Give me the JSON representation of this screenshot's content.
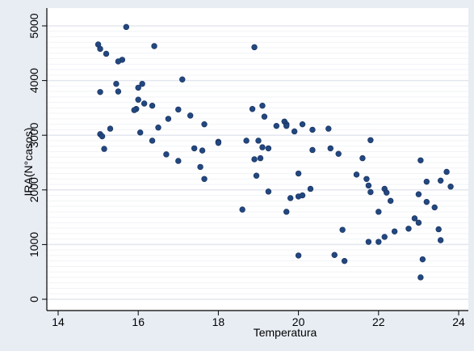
{
  "chart_data": {
    "type": "scatter",
    "title": "",
    "xlabel": "Temperatura",
    "ylabel": "IRA(N°casos)",
    "xlim": [
      14,
      24
    ],
    "ylim": [
      0,
      5000
    ],
    "x_ticks": [
      14,
      16,
      18,
      20,
      22,
      24
    ],
    "y_ticks": [
      0,
      1000,
      2000,
      3000,
      4000,
      5000
    ],
    "grid": true,
    "legend": "none",
    "colors": {
      "point": "#23477f",
      "background": "#e8edf4",
      "plot_bg": "#ffffff",
      "grid": "#eef1f5"
    },
    "points": [
      {
        "x": 15.0,
        "y": 4660
      },
      {
        "x": 15.05,
        "y": 4580
      },
      {
        "x": 15.2,
        "y": 4490
      },
      {
        "x": 15.7,
        "y": 4980
      },
      {
        "x": 15.6,
        "y": 4380
      },
      {
        "x": 15.5,
        "y": 4350
      },
      {
        "x": 16.4,
        "y": 4630
      },
      {
        "x": 15.05,
        "y": 3790
      },
      {
        "x": 15.45,
        "y": 3940
      },
      {
        "x": 15.5,
        "y": 3800
      },
      {
        "x": 16.0,
        "y": 3870
      },
      {
        "x": 16.1,
        "y": 3940
      },
      {
        "x": 16.0,
        "y": 3650
      },
      {
        "x": 15.95,
        "y": 3480
      },
      {
        "x": 15.9,
        "y": 3460
      },
      {
        "x": 16.15,
        "y": 3580
      },
      {
        "x": 16.35,
        "y": 3540
      },
      {
        "x": 17.1,
        "y": 4020
      },
      {
        "x": 16.5,
        "y": 3140
      },
      {
        "x": 16.75,
        "y": 3300
      },
      {
        "x": 17.0,
        "y": 3470
      },
      {
        "x": 17.3,
        "y": 3360
      },
      {
        "x": 17.65,
        "y": 3200
      },
      {
        "x": 15.3,
        "y": 3120
      },
      {
        "x": 16.05,
        "y": 3050
      },
      {
        "x": 15.05,
        "y": 3020
      },
      {
        "x": 15.1,
        "y": 2980
      },
      {
        "x": 15.15,
        "y": 2750
      },
      {
        "x": 16.35,
        "y": 2900
      },
      {
        "x": 16.7,
        "y": 2650
      },
      {
        "x": 17.0,
        "y": 2530
      },
      {
        "x": 17.4,
        "y": 2760
      },
      {
        "x": 17.6,
        "y": 2720
      },
      {
        "x": 17.55,
        "y": 2420
      },
      {
        "x": 17.65,
        "y": 2200
      },
      {
        "x": 18.0,
        "y": 2880
      },
      {
        "x": 18.0,
        "y": 2860
      },
      {
        "x": 18.9,
        "y": 4610
      },
      {
        "x": 18.85,
        "y": 3480
      },
      {
        "x": 19.1,
        "y": 3540
      },
      {
        "x": 19.15,
        "y": 3340
      },
      {
        "x": 19.45,
        "y": 3170
      },
      {
        "x": 19.65,
        "y": 3250
      },
      {
        "x": 19.7,
        "y": 3200
      },
      {
        "x": 19.7,
        "y": 3170
      },
      {
        "x": 19.9,
        "y": 3070
      },
      {
        "x": 20.1,
        "y": 3200
      },
      {
        "x": 20.35,
        "y": 3100
      },
      {
        "x": 20.75,
        "y": 3120
      },
      {
        "x": 18.7,
        "y": 2900
      },
      {
        "x": 19.0,
        "y": 2900
      },
      {
        "x": 19.1,
        "y": 2780
      },
      {
        "x": 19.25,
        "y": 2760
      },
      {
        "x": 19.05,
        "y": 2580
      },
      {
        "x": 18.9,
        "y": 2560
      },
      {
        "x": 18.95,
        "y": 2260
      },
      {
        "x": 18.6,
        "y": 1640
      },
      {
        "x": 19.25,
        "y": 1970
      },
      {
        "x": 20.0,
        "y": 2300
      },
      {
        "x": 20.35,
        "y": 2730
      },
      {
        "x": 20.8,
        "y": 2760
      },
      {
        "x": 21.0,
        "y": 2660
      },
      {
        "x": 19.7,
        "y": 1600
      },
      {
        "x": 19.8,
        "y": 1850
      },
      {
        "x": 20.0,
        "y": 1880
      },
      {
        "x": 20.1,
        "y": 1900
      },
      {
        "x": 20.3,
        "y": 2020
      },
      {
        "x": 20.0,
        "y": 800
      },
      {
        "x": 20.9,
        "y": 810
      },
      {
        "x": 21.1,
        "y": 1270
      },
      {
        "x": 21.15,
        "y": 700
      },
      {
        "x": 21.45,
        "y": 2280
      },
      {
        "x": 21.6,
        "y": 2580
      },
      {
        "x": 21.8,
        "y": 2910
      },
      {
        "x": 21.7,
        "y": 2200
      },
      {
        "x": 21.75,
        "y": 2080
      },
      {
        "x": 21.8,
        "y": 1960
      },
      {
        "x": 22.15,
        "y": 2020
      },
      {
        "x": 22.2,
        "y": 1950
      },
      {
        "x": 22.3,
        "y": 1800
      },
      {
        "x": 22.0,
        "y": 1600
      },
      {
        "x": 21.75,
        "y": 1050
      },
      {
        "x": 22.0,
        "y": 1050
      },
      {
        "x": 22.15,
        "y": 1140
      },
      {
        "x": 22.4,
        "y": 1240
      },
      {
        "x": 22.75,
        "y": 1290
      },
      {
        "x": 22.9,
        "y": 1480
      },
      {
        "x": 23.0,
        "y": 1400
      },
      {
        "x": 23.05,
        "y": 2540
      },
      {
        "x": 23.0,
        "y": 1920
      },
      {
        "x": 23.2,
        "y": 2150
      },
      {
        "x": 23.2,
        "y": 1780
      },
      {
        "x": 23.4,
        "y": 1680
      },
      {
        "x": 23.55,
        "y": 2170
      },
      {
        "x": 23.7,
        "y": 2330
      },
      {
        "x": 23.8,
        "y": 2060
      },
      {
        "x": 23.5,
        "y": 1280
      },
      {
        "x": 23.55,
        "y": 1080
      },
      {
        "x": 23.1,
        "y": 730
      },
      {
        "x": 23.05,
        "y": 400
      }
    ]
  }
}
